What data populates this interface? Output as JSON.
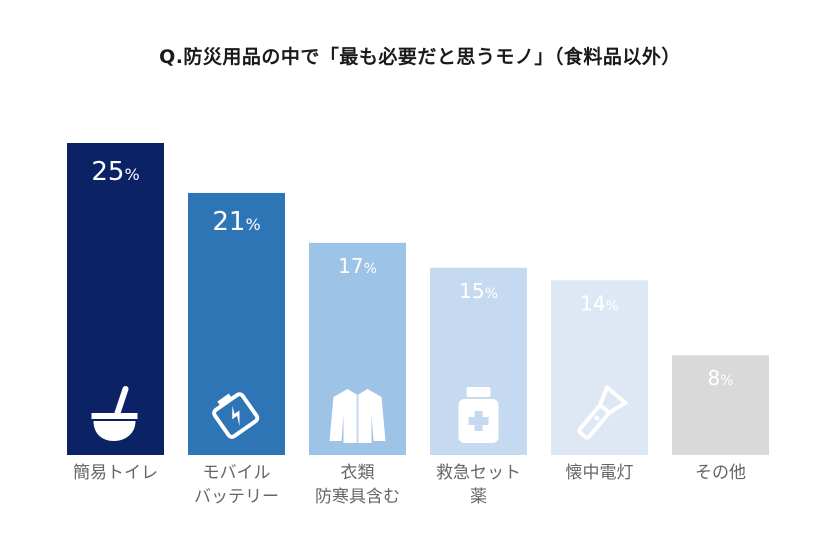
{
  "chart_data": {
    "type": "bar",
    "title": "Q.防災用品の中で「最も必要だと思うモノ」（食料品以外）",
    "categories": [
      [
        "簡易トイレ"
      ],
      [
        "モバイル",
        "バッテリー"
      ],
      [
        "衣類",
        "防寒具含む"
      ],
      [
        "救急セット",
        "薬"
      ],
      [
        "懐中電灯"
      ],
      [
        "その他"
      ]
    ],
    "values": [
      25,
      21,
      17,
      15,
      14,
      8
    ],
    "unit": "%",
    "ylim": [
      0,
      25
    ],
    "grid": false,
    "legend": "none",
    "colors": [
      "#0b2265",
      "#2e75b6",
      "#9dc3e6",
      "#c5daf0",
      "#dde8f4",
      "#d9d9d9"
    ],
    "label_colors": [
      "#ffffff",
      "#ffffff",
      "#ffffff",
      "#ffffff",
      "#ffffff",
      "#ffffff"
    ],
    "icons": [
      "toilet-icon",
      "battery-icon",
      "jacket-icon",
      "medicine-bottle-icon",
      "flashlight-icon",
      null
    ]
  }
}
